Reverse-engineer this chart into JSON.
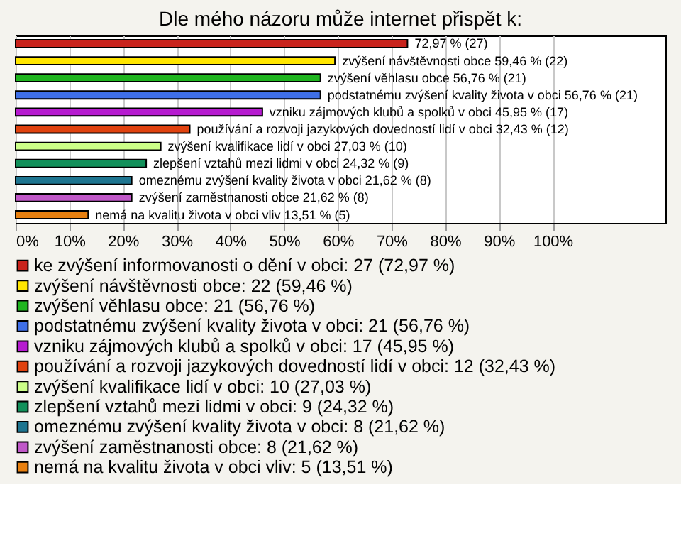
{
  "chart_data": {
    "type": "bar",
    "orientation": "horizontal",
    "title": "Dle mého názoru může internet přispět k:",
    "categories": [
      null,
      null,
      null,
      null,
      null,
      null,
      null,
      null,
      null,
      null,
      null
    ],
    "series": [
      {
        "name": "ke zvýšení informovanosti o dění v obci: 27 (72,97 %)",
        "color": "#c8231c",
        "values": [
          72.97,
          null,
          null,
          null,
          null,
          null,
          null,
          null,
          null,
          null,
          null
        ],
        "value_labels": [
          "72,97 % (27)",
          null,
          null,
          null,
          null,
          null,
          null,
          null,
          null,
          null,
          null
        ]
      },
      {
        "name": "zvýšení návštěvnosti obce: 22 (59,46 %)",
        "color": "#ffe600",
        "values": [
          null,
          59.46,
          null,
          null,
          null,
          null,
          null,
          null,
          null,
          null,
          null
        ],
        "value_labels": [
          null,
          "zvýšení návštěvnosti obce 59,46 % (22)",
          null,
          null,
          null,
          null,
          null,
          null,
          null,
          null,
          null
        ]
      },
      {
        "name": "zvýšení věhlasu obce: 21 (56,76 %)",
        "color": "#1fb51f",
        "values": [
          null,
          null,
          56.76,
          null,
          null,
          null,
          null,
          null,
          null,
          null,
          null
        ],
        "value_labels": [
          null,
          null,
          "zvýšení věhlasu obce 56,76 % (21)",
          null,
          null,
          null,
          null,
          null,
          null,
          null,
          null
        ]
      },
      {
        "name": "podstatnému zvýšení kvality života v obci: 21 (56,76 %)",
        "color": "#3f6fe8",
        "values": [
          null,
          null,
          null,
          56.76,
          null,
          null,
          null,
          null,
          null,
          null,
          null
        ],
        "value_labels": [
          null,
          null,
          null,
          "podstatnému zvýšení kvality života v obci 56,76 % (21)",
          null,
          null,
          null,
          null,
          null,
          null,
          null
        ]
      },
      {
        "name": "vzniku zájmových klubů a spolků v obci: 17 (45,95 %)",
        "color": "#b61bd0",
        "values": [
          null,
          null,
          null,
          null,
          45.95,
          null,
          null,
          null,
          null,
          null,
          null
        ],
        "value_labels": [
          null,
          null,
          null,
          null,
          "vzniku zájmových klubů a spolků v obci 45,95 % (17)",
          null,
          null,
          null,
          null,
          null,
          null
        ]
      },
      {
        "name": "používání a rozvoji jazykových dovedností lidí v obci: 12 (32,43 %)",
        "color": "#e0420f",
        "values": [
          null,
          null,
          null,
          null,
          null,
          32.43,
          null,
          null,
          null,
          null,
          null
        ],
        "value_labels": [
          null,
          null,
          null,
          null,
          null,
          "používání a rozvoji jazykových dovedností lidí v obci 32,43 % (12)",
          null,
          null,
          null,
          null,
          null
        ]
      },
      {
        "name": "zvýšení kvalifikace lidí v obci: 10 (27,03 %)",
        "color": "#ccff88",
        "values": [
          null,
          null,
          null,
          null,
          null,
          null,
          27.03,
          null,
          null,
          null,
          null
        ],
        "value_labels": [
          null,
          null,
          null,
          null,
          null,
          null,
          "zvýšení kvalifikace lidí v obci 27,03 % (10)",
          null,
          null,
          null,
          null
        ]
      },
      {
        "name": "zlepšení vztahů mezi lidmi v obci: 9 (24,32 %)",
        "color": "#12905a",
        "values": [
          null,
          null,
          null,
          null,
          null,
          null,
          null,
          24.32,
          null,
          null,
          null
        ],
        "value_labels": [
          null,
          null,
          null,
          null,
          null,
          null,
          null,
          "zlepšení vztahů mezi lidmi v obci 24,32 % (9)",
          null,
          null,
          null
        ]
      },
      {
        "name": "omeznému zvýšení kvality života v obci: 8 (21,62 %)",
        "color": "#1e7590",
        "values": [
          null,
          null,
          null,
          null,
          null,
          null,
          null,
          null,
          21.62,
          null,
          null
        ],
        "value_labels": [
          null,
          null,
          null,
          null,
          null,
          null,
          null,
          null,
          "omeznému zvýšení kvality života v obci 21,62 % (8)",
          null,
          null
        ]
      },
      {
        "name": "zvýšení zaměstnanosti obce: 8 (21,62 %)",
        "color": "#c058c8",
        "values": [
          null,
          null,
          null,
          null,
          null,
          null,
          null,
          null,
          null,
          21.62,
          null
        ],
        "value_labels": [
          null,
          null,
          null,
          null,
          null,
          null,
          null,
          null,
          null,
          "zvýšení zaměstnanosti obce 21,62 % (8)",
          null
        ]
      },
      {
        "name": "nemá na kvalitu života v obci vliv: 5 (13,51 %)",
        "color": "#e88010",
        "values": [
          null,
          null,
          null,
          null,
          null,
          null,
          null,
          null,
          null,
          null,
          13.51
        ],
        "value_labels": [
          null,
          null,
          null,
          null,
          null,
          null,
          null,
          null,
          null,
          null,
          "nemá na kvalitu života v obci vliv 13,51 % (5)"
        ]
      }
    ],
    "xlim": [
      0,
      121
    ],
    "xticks": [
      {
        "value": 0,
        "label": "0%"
      },
      {
        "value": 10,
        "label": "10%"
      },
      {
        "value": 20,
        "label": "20%"
      },
      {
        "value": 30,
        "label": "30%"
      },
      {
        "value": 40,
        "label": "40%"
      },
      {
        "value": 50,
        "label": "50%"
      },
      {
        "value": 60,
        "label": "60%"
      },
      {
        "value": 70,
        "label": "70%"
      },
      {
        "value": 80,
        "label": "80%"
      },
      {
        "value": 90,
        "label": "90%"
      },
      {
        "value": 100,
        "label": "100%"
      }
    ],
    "grid": "x",
    "legend": "bottom",
    "tick_labels": "x"
  }
}
